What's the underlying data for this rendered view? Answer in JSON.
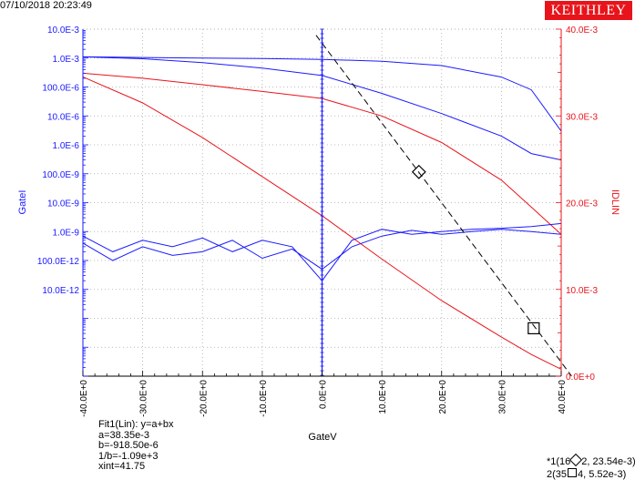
{
  "header": {
    "timestamp": "07/10/2018 20:23:49",
    "brand": "KEITHLEY"
  },
  "colors": {
    "left_axis": "#1a1aff",
    "right_axis": "#e8141b",
    "grid": "#a8a8a8",
    "fit_line": "#000000",
    "logo_bg": "#e8141b"
  },
  "fit": {
    "title": "Fit1(Lin): y=a+bx",
    "a": "a=38.35e-3",
    "b": "b=-918.50e-6",
    "inv_b": "1/b=-1.09e+3",
    "xint": "xint=41.75"
  },
  "markers": {
    "m1": "*1(16ⓦ2, 23.54e-3)",
    "m2": "2(35ⓦ4, 5.52e-3)",
    "m1_display": "*1(16",
    "m1_rest": "2, 23.54e-3)",
    "m2_display": "2(35",
    "m2_rest": "4, 5.52e-3)"
  },
  "chart_data": {
    "type": "line",
    "xlabel": "GateV",
    "ylabel_left": "GateI",
    "ylabel_right": "IDLIN",
    "xlim": [
      -40,
      40
    ],
    "x_ticks": [
      "-40.0E+0",
      "-30.0E+0",
      "-20.0E+0",
      "-10.0E+0",
      "0.0E+0",
      "10.0E+0",
      "20.0E+0",
      "30.0E+0",
      "40.0E+0"
    ],
    "left_scale": "log",
    "left_lim": [
      1e-14,
      0.01
    ],
    "left_ticks": [
      "10.0E-3",
      "1.0E-3",
      "100.0E-6",
      "10.0E-6",
      "1.0E-6",
      "100.0E-9",
      "10.0E-9",
      "1.0E-9",
      "100.0E-12",
      "10.0E-12"
    ],
    "right_scale": "linear",
    "right_lim": [
      0,
      0.04
    ],
    "right_ticks": [
      "40.0E-3",
      "30.0E-3",
      "20.0E-3",
      "10.0E-3",
      "0.0E+0"
    ],
    "grid": true,
    "series": [
      {
        "axis": "left",
        "color": "#1a1aff",
        "x": [
          -40,
          -30,
          -20,
          -10,
          0,
          10,
          20,
          30,
          35,
          40
        ],
        "y": [
          0.0011,
          0.00105,
          0.001,
          0.00096,
          0.0009,
          0.00078,
          0.00055,
          0.00022,
          8e-05,
          3e-06
        ]
      },
      {
        "axis": "left",
        "color": "#1a1aff",
        "x": [
          -40,
          -30,
          -20,
          -10,
          0,
          10,
          20,
          30,
          35,
          40
        ],
        "y": [
          0.0011,
          0.00095,
          0.0007,
          0.00045,
          0.00025,
          6e-05,
          1.2e-05,
          2e-06,
          5e-07,
          3e-07
        ]
      },
      {
        "axis": "left",
        "color": "#e8141b",
        "x": [
          -40,
          -30,
          -20,
          -10,
          0,
          10,
          20,
          30,
          35,
          40
        ],
        "y": [
          0.0003,
          0.0002,
          0.00012,
          7e-05,
          4e-05,
          1e-05,
          1.2e-06,
          6e-08,
          7e-09,
          8e-10
        ]
      },
      {
        "axis": "right",
        "color": "#e8141b",
        "x": [
          -40,
          -30,
          -20,
          -10,
          0,
          10,
          20,
          30,
          35,
          40
        ],
        "y": [
          0.0345,
          0.0315,
          0.0275,
          0.023,
          0.0185,
          0.0135,
          0.0087,
          0.0045,
          0.0025,
          0.0008
        ]
      },
      {
        "axis": "left",
        "color": "#1a1aff",
        "x": [
          -40,
          -35,
          -30,
          -25,
          -20,
          -15,
          -10,
          -5,
          0,
          5,
          10,
          15,
          20,
          25,
          30,
          35,
          40
        ],
        "y": [
          7e-10,
          2e-10,
          5e-10,
          3e-10,
          6e-10,
          2e-10,
          5e-10,
          3e-10,
          2e-11,
          5e-10,
          1.2e-09,
          8e-10,
          1e-09,
          1.2e-09,
          1.3e-09,
          1.5e-09,
          1.9e-09
        ]
      },
      {
        "axis": "left",
        "color": "#1a1aff",
        "x": [
          -40,
          -35,
          -30,
          -25,
          -20,
          -15,
          -10,
          -5,
          0,
          5,
          10,
          15,
          20,
          25,
          30,
          35,
          40
        ],
        "y": [
          4e-10,
          1e-10,
          3e-10,
          1.5e-10,
          2e-10,
          5e-10,
          1.2e-10,
          2.5e-10,
          5e-11,
          3e-10,
          7e-10,
          1.1e-09,
          8e-10,
          1e-09,
          1.2e-09,
          1e-09,
          8e-10
        ]
      }
    ],
    "fit_line": {
      "x": [
        -1,
        41.75
      ],
      "y": [
        0.0393,
        0.0
      ]
    },
    "marker_points": [
      {
        "x": 16.2,
        "y": 0.02354
      },
      {
        "x": 35.4,
        "y": 0.00552
      }
    ]
  }
}
